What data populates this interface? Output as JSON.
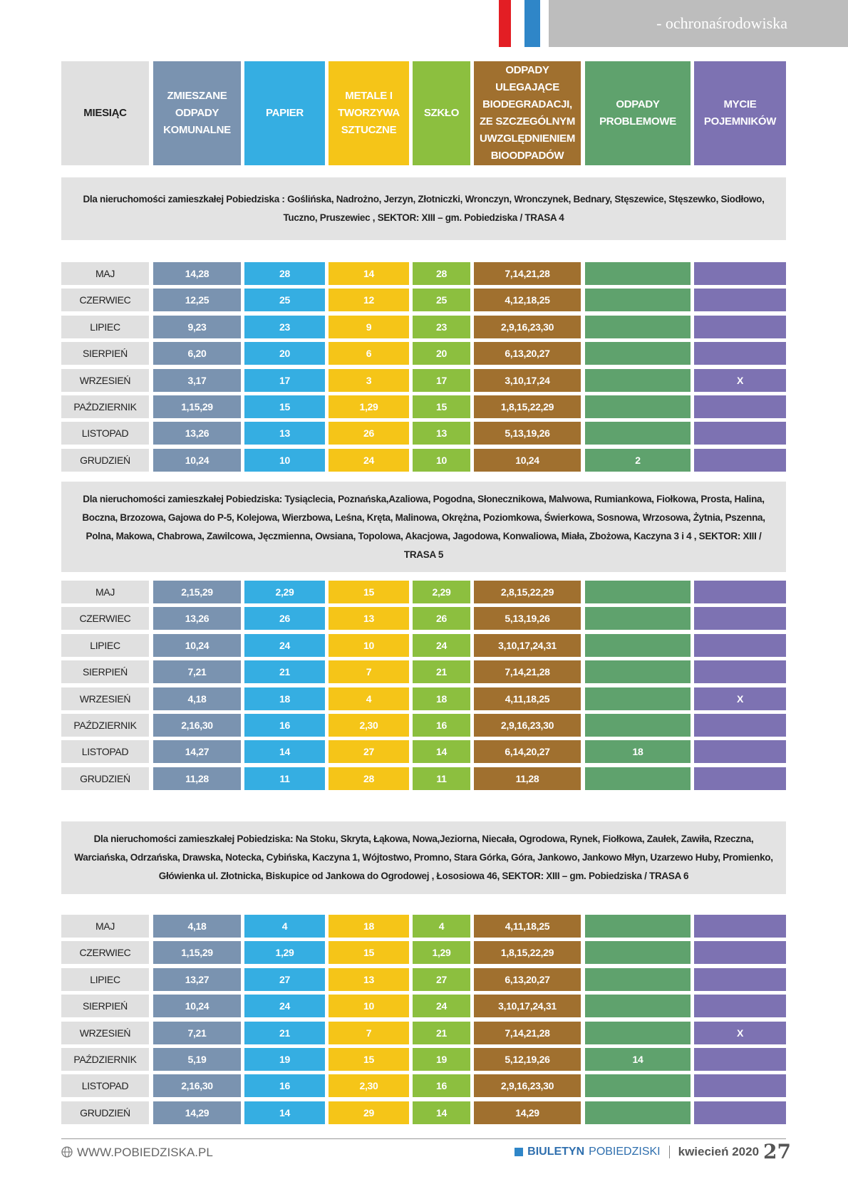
{
  "header": {
    "tag": "- ochronaśrodowiska"
  },
  "table": {
    "columns": [
      "MIESIĄC",
      "ZMIESZANE ODPADY KOMUNALNE",
      "PAPIER",
      "METALE I TWORZYWA SZTUCZNE",
      "SZKŁO",
      "ODPADY ULEGAJĄCE BIODEGRADACJI, ZE SZCZEGÓLNYM UWZGLĘDNIENIEM BIOODPADÓW",
      "ODPADY PROBLEMOWE",
      "MYCIE POJEMNIKÓW"
    ],
    "sections": [
      {
        "description": "Dla nieruchomości zamieszkałej Pobiedziska : Goślińska, Nadrożno, Jerzyn, Złotniczki, Wronczyn, Wronczynek, Bednary, Stęszewice, Stęszewko, Siodłowo, Tuczno, Pruszewiec , SEKTOR: XIII – gm. Pobiedziska / TRASA 4",
        "rows": [
          [
            "MAJ",
            "14,28",
            "28",
            "14",
            "28",
            "7,14,21,28",
            null,
            null
          ],
          [
            "CZERWIEC",
            "12,25",
            "25",
            "12",
            "25",
            "4,12,18,25",
            null,
            null
          ],
          [
            "LIPIEC",
            "9,23",
            "23",
            "9",
            "23",
            "2,9,16,23,30",
            null,
            null
          ],
          [
            "SIERPIEŃ",
            "6,20",
            "20",
            "6",
            "20",
            "6,13,20,27",
            null,
            null
          ],
          [
            "WRZESIEŃ",
            "3,17",
            "17",
            "3",
            "17",
            "3,10,17,24",
            null,
            "X"
          ],
          [
            "PAŹDZIERNIK",
            "1,15,29",
            "15",
            "1,29",
            "15",
            "1,8,15,22,29",
            null,
            null
          ],
          [
            "LISTOPAD",
            "13,26",
            "13",
            "26",
            "13",
            "5,13,19,26",
            null,
            null
          ],
          [
            "GRUDZIEŃ",
            "10,24",
            "10",
            "24",
            "10",
            "10,24",
            "2",
            null
          ]
        ]
      },
      {
        "description": "Dla nieruchomości zamieszkałej  Pobiedziska: Tysiąclecia, Poznańska,Azaliowa, Pogodna, Słonecznikowa, Malwowa, Rumiankowa, Fiołkowa, Prosta, Halina, Boczna, Brzozowa, Gajowa do P-5, Kolejowa, Wierzbowa, Leśna, Kręta, Malinowa, Okrężna, Poziomkowa, Świerkowa, Sosnowa, Wrzosowa, Żytnia, Pszenna, Polna, Makowa, Chabrowa, Zawilcowa, Jęczmienna, Owsiana, Topolowa, Akacjowa, Jagodowa, Konwaliowa, Miała, Zbożowa, Kaczyna 3 i 4  , SEKTOR: XIII / TRASA 5",
        "rows": [
          [
            "MAJ",
            "2,15,29",
            "2,29",
            "15",
            "2,29",
            "2,8,15,22,29",
            null,
            null
          ],
          [
            "CZERWIEC",
            "13,26",
            "26",
            "13",
            "26",
            "5,13,19,26",
            null,
            null
          ],
          [
            "LIPIEC",
            "10,24",
            "24",
            "10",
            "24",
            "3,10,17,24,31",
            null,
            null
          ],
          [
            "SIERPIEŃ",
            "7,21",
            "21",
            "7",
            "21",
            "7,14,21,28",
            null,
            null
          ],
          [
            "WRZESIEŃ",
            "4,18",
            "18",
            "4",
            "18",
            "4,11,18,25",
            null,
            "X"
          ],
          [
            "PAŹDZIERNIK",
            "2,16,30",
            "16",
            "2,30",
            "16",
            "2,9,16,23,30",
            null,
            null
          ],
          [
            "LISTOPAD",
            "14,27",
            "14",
            "27",
            "14",
            "6,14,20,27",
            "18",
            null
          ],
          [
            "GRUDZIEŃ",
            "11,28",
            "11",
            "28",
            "11",
            "11,28",
            null,
            null
          ]
        ]
      },
      {
        "description": "Dla nieruchomości zamieszkałej Pobiedziska: Na Stoku, Skryta, Łąkowa, Nowa,Jeziorna, Niecała, Ogrodowa, Rynek, Fiołkowa, Zaułek, Zawiła, Rzeczna, Warciańska, Odrzańska, Drawska, Notecka, Cybińska, Kaczyna 1, Wójtostwo, Promno, Stara Górka, Góra, Jankowo, Jankowo Młyn, Uzarzewo Huby, Promienko, Główienka ul. Złotnicka, Biskupice od Jankowa do Ogrodowej , Łososiowa 46, SEKTOR: XIII – gm. Pobiedziska / TRASA 6",
        "rows": [
          [
            "MAJ",
            "4,18",
            "4",
            "18",
            "4",
            "4,11,18,25",
            null,
            null
          ],
          [
            "CZERWIEC",
            "1,15,29",
            "1,29",
            "15",
            "1,29",
            "1,8,15,22,29",
            null,
            null
          ],
          [
            "LIPIEC",
            "13,27",
            "27",
            "13",
            "27",
            "6,13,20,27",
            null,
            null
          ],
          [
            "SIERPIEŃ",
            "10,24",
            "24",
            "10",
            "24",
            "3,10,17,24,31",
            null,
            null
          ],
          [
            "WRZESIEŃ",
            "7,21",
            "21",
            "7",
            "21",
            "7,14,21,28",
            null,
            "X"
          ],
          [
            "PAŹDZIERNIK",
            "5,19",
            "19",
            "15",
            "19",
            "5,12,19,26",
            "14",
            null
          ],
          [
            "LISTOPAD",
            "2,16,30",
            "16",
            "2,30",
            "16",
            "2,9,16,23,30",
            null,
            null
          ],
          [
            "GRUDZIEŃ",
            "14,29",
            "14",
            "29",
            "14",
            "14,29",
            null,
            null
          ]
        ]
      }
    ]
  },
  "footer": {
    "website": "WWW.POBIEDZISKA.PL",
    "brand_bold": "BIULETYN",
    "brand": "POBIEDZISKI",
    "date": "kwiecień 2020",
    "page": "27"
  }
}
